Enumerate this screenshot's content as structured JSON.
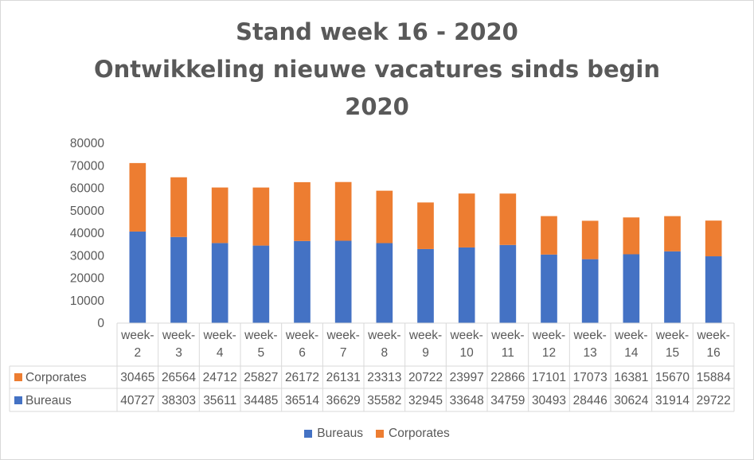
{
  "chart_data": {
    "type": "bar",
    "stacked": true,
    "title_lines": [
      "Stand week 16 - 2020",
      "Ontwikkeling nieuwe vacatures sinds begin",
      "2020"
    ],
    "categories": [
      [
        "week-",
        "2"
      ],
      [
        "week-",
        "3"
      ],
      [
        "week-",
        "4"
      ],
      [
        "week-",
        "5"
      ],
      [
        "week-",
        "6"
      ],
      [
        "week-",
        "7"
      ],
      [
        "week-",
        "8"
      ],
      [
        "week-",
        "9"
      ],
      [
        "week-",
        "10"
      ],
      [
        "week-",
        "11"
      ],
      [
        "week-",
        "12"
      ],
      [
        "week-",
        "13"
      ],
      [
        "week-",
        "14"
      ],
      [
        "week-",
        "15"
      ],
      [
        "week-",
        "16"
      ]
    ],
    "series": [
      {
        "name": "Bureaus",
        "color": "#4472C4",
        "values": [
          40727,
          38303,
          35611,
          34485,
          36514,
          36629,
          35582,
          32945,
          33648,
          34759,
          30493,
          28446,
          30624,
          31914,
          29722
        ]
      },
      {
        "name": "Corporates",
        "color": "#ED7D31",
        "values": [
          30465,
          26564,
          24712,
          25827,
          26172,
          26131,
          23313,
          20722,
          23997,
          22866,
          17101,
          17073,
          16381,
          15670,
          15884
        ]
      }
    ],
    "ylim": [
      0,
      80000
    ],
    "yticks": [
      0,
      10000,
      20000,
      30000,
      40000,
      50000,
      60000,
      70000,
      80000
    ],
    "xlabel": "",
    "ylabel": "",
    "grid": false,
    "data_table": true,
    "legend_position": "bottom"
  }
}
